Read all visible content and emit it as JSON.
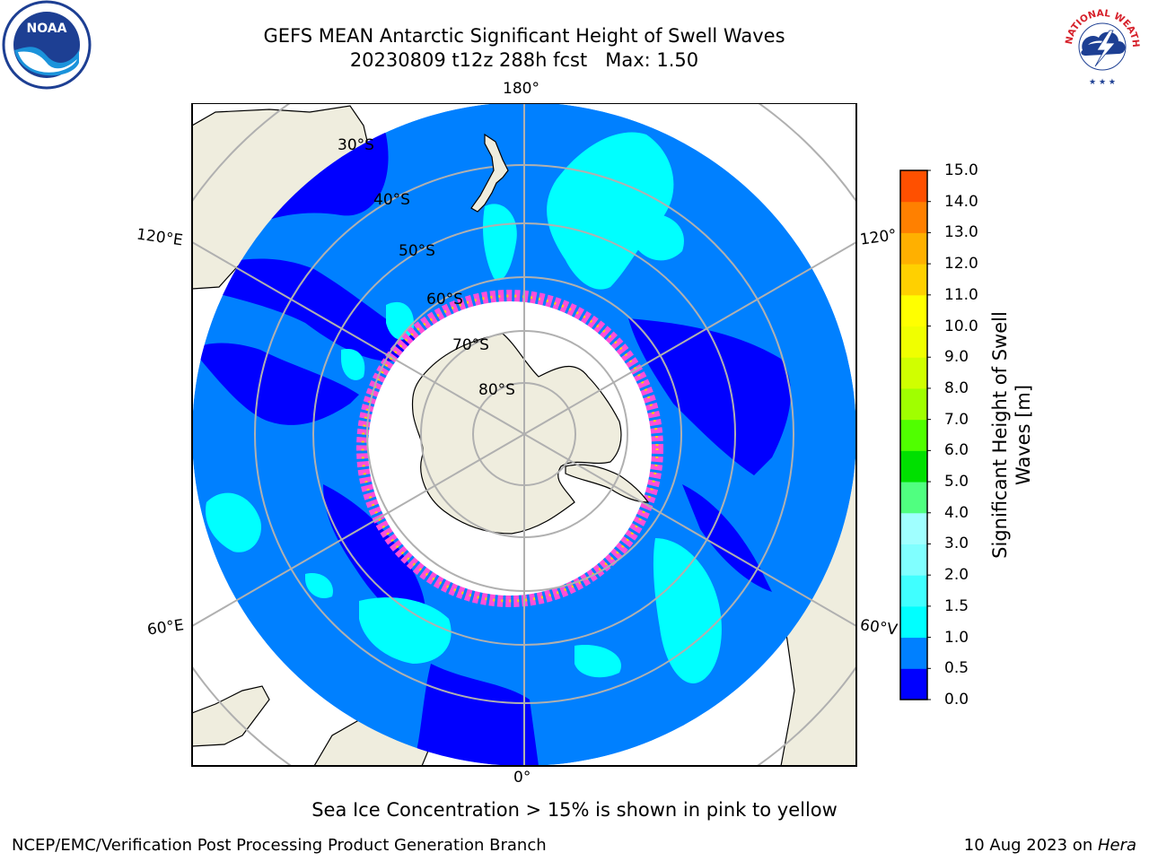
{
  "title": {
    "line1": "GEFS MEAN Antarctic Significant Height of Swell Waves",
    "line2": "20230809 t12z 288h fcst   Max: 1.50"
  },
  "map": {
    "projection": "south-polar-stereographic",
    "ocean_color": "#0080ff",
    "land_color": "#efedde",
    "ice_color": "#ffffff",
    "low_swell_color": "#0000ff",
    "mid_swell_color": "#00ffff",
    "sea_ice_edge_colors": [
      "#ff4fd8",
      "#ffa0ff",
      "#ffd000"
    ],
    "grid_color": "#b0b0b0",
    "latitude_labels": [
      "30°S",
      "40°S",
      "50°S",
      "60°S",
      "70°S",
      "80°S"
    ],
    "longitude_labels": {
      "top": "180°",
      "bottom": "0°",
      "upper_left": "120°E",
      "lower_left": "60°E",
      "upper_right": "120°",
      "lower_right": "60°V"
    }
  },
  "colorbar": {
    "label": "Significant Height of Swell\nWaves [m]",
    "ticks": [
      "0.0",
      "0.5",
      "1.0",
      "1.5",
      "2.0",
      "3.0",
      "4.0",
      "5.0",
      "6.0",
      "7.0",
      "8.0",
      "9.0",
      "10.0",
      "11.0",
      "12.0",
      "13.0",
      "14.0",
      "15.0"
    ],
    "colors": [
      "#0000ff",
      "#0080ff",
      "#00ffff",
      "#40ffff",
      "#80ffff",
      "#a0ffff",
      "#50ff80",
      "#00e000",
      "#50ff00",
      "#a0ff00",
      "#d0ff00",
      "#f0ff00",
      "#ffff00",
      "#ffd000",
      "#ffb000",
      "#ff8000",
      "#ff5000",
      "#ff2000",
      "#ff0000"
    ]
  },
  "footer": {
    "note": "Sea Ice Concentration > 15% is shown in pink to yellow",
    "credit_left": "NCEP/EMC/Verification Post Processing Product Generation Branch",
    "date": "10 Aug 2023 on ",
    "host": "Hera"
  },
  "logos": {
    "noaa": "NOAA",
    "nws_ring": "NATIONAL WEATHER SERVICE"
  }
}
